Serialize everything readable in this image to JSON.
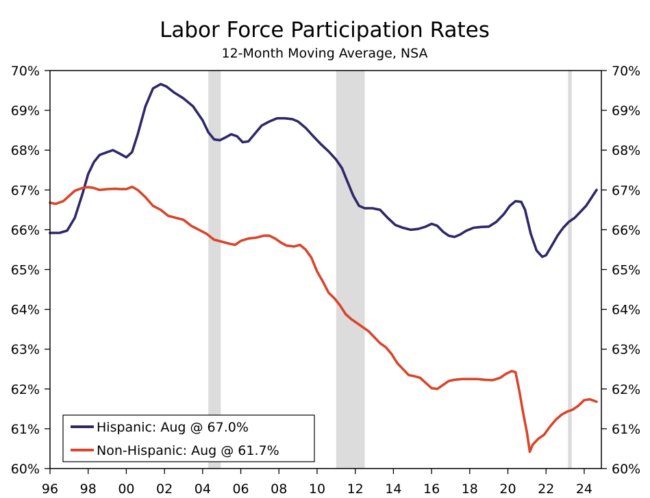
{
  "chart_data": {
    "type": "line",
    "title": "Labor Force Participation Rates",
    "subtitle": "12-Month Moving Average, NSA",
    "x_tick_labels": [
      "96",
      "98",
      "00",
      "02",
      "04",
      "06",
      "08",
      "10",
      "12",
      "14",
      "16",
      "18",
      "20",
      "22",
      "24"
    ],
    "x_tick_years": [
      1996,
      1998,
      2000,
      2002,
      2004,
      2006,
      2008,
      2010,
      2012,
      2014,
      2016,
      2018,
      2020,
      2022,
      2024
    ],
    "xlim": [
      1996,
      2024.9
    ],
    "y_tick_labels": [
      "60%",
      "61%",
      "62%",
      "63%",
      "64%",
      "65%",
      "66%",
      "67%",
      "68%",
      "69%",
      "70%"
    ],
    "y_tick_values": [
      60,
      61,
      62,
      63,
      64,
      65,
      66,
      67,
      68,
      69,
      70
    ],
    "ylim": [
      60,
      70
    ],
    "y_axis_both_sides": true,
    "grid": false,
    "legend_position": "bottom-left",
    "recession_shading": [
      [
        2004.3,
        2004.95
      ],
      [
        2011.0,
        2012.5
      ],
      [
        2023.15,
        2023.35
      ]
    ],
    "series": [
      {
        "name": "Hispanic: Aug @ 67.0%",
        "color": "#2e2768",
        "points": [
          [
            1996.0,
            65.92
          ],
          [
            1996.5,
            65.92
          ],
          [
            1996.9,
            65.98
          ],
          [
            1997.3,
            66.3
          ],
          [
            1997.7,
            66.9
          ],
          [
            1998.0,
            67.4
          ],
          [
            1998.3,
            67.7
          ],
          [
            1998.6,
            67.88
          ],
          [
            1999.0,
            67.95
          ],
          [
            1999.3,
            68.0
          ],
          [
            1999.7,
            67.9
          ],
          [
            2000.0,
            67.82
          ],
          [
            2000.3,
            67.95
          ],
          [
            2000.6,
            68.4
          ],
          [
            2001.0,
            69.1
          ],
          [
            2001.4,
            69.55
          ],
          [
            2001.8,
            69.66
          ],
          [
            2002.1,
            69.6
          ],
          [
            2002.5,
            69.45
          ],
          [
            2003.0,
            69.3
          ],
          [
            2003.5,
            69.1
          ],
          [
            2004.0,
            68.75
          ],
          [
            2004.3,
            68.45
          ],
          [
            2004.6,
            68.27
          ],
          [
            2004.9,
            68.25
          ],
          [
            2005.2,
            68.32
          ],
          [
            2005.5,
            68.4
          ],
          [
            2005.8,
            68.35
          ],
          [
            2006.1,
            68.2
          ],
          [
            2006.4,
            68.22
          ],
          [
            2006.8,
            68.45
          ],
          [
            2007.1,
            68.62
          ],
          [
            2007.5,
            68.72
          ],
          [
            2007.9,
            68.8
          ],
          [
            2008.3,
            68.8
          ],
          [
            2008.7,
            68.78
          ],
          [
            2009.0,
            68.72
          ],
          [
            2009.4,
            68.56
          ],
          [
            2009.8,
            68.35
          ],
          [
            2010.2,
            68.15
          ],
          [
            2010.6,
            67.97
          ],
          [
            2011.0,
            67.76
          ],
          [
            2011.3,
            67.55
          ],
          [
            2011.6,
            67.2
          ],
          [
            2011.9,
            66.85
          ],
          [
            2012.2,
            66.6
          ],
          [
            2012.5,
            66.54
          ],
          [
            2012.9,
            66.54
          ],
          [
            2013.3,
            66.5
          ],
          [
            2013.7,
            66.3
          ],
          [
            2014.1,
            66.12
          ],
          [
            2014.5,
            66.05
          ],
          [
            2014.9,
            66.0
          ],
          [
            2015.3,
            66.02
          ],
          [
            2015.7,
            66.08
          ],
          [
            2016.0,
            66.15
          ],
          [
            2016.3,
            66.1
          ],
          [
            2016.6,
            65.95
          ],
          [
            2016.9,
            65.85
          ],
          [
            2017.2,
            65.82
          ],
          [
            2017.5,
            65.88
          ],
          [
            2017.8,
            65.97
          ],
          [
            2018.2,
            66.05
          ],
          [
            2018.6,
            66.07
          ],
          [
            2019.0,
            66.08
          ],
          [
            2019.4,
            66.2
          ],
          [
            2019.8,
            66.4
          ],
          [
            2020.1,
            66.6
          ],
          [
            2020.4,
            66.72
          ],
          [
            2020.7,
            66.7
          ],
          [
            2020.9,
            66.5
          ],
          [
            2021.2,
            65.9
          ],
          [
            2021.5,
            65.48
          ],
          [
            2021.8,
            65.32
          ],
          [
            2022.0,
            65.36
          ],
          [
            2022.3,
            65.6
          ],
          [
            2022.6,
            65.85
          ],
          [
            2022.9,
            66.05
          ],
          [
            2023.2,
            66.2
          ],
          [
            2023.5,
            66.3
          ],
          [
            2023.8,
            66.45
          ],
          [
            2024.1,
            66.6
          ],
          [
            2024.4,
            66.82
          ],
          [
            2024.65,
            67.0
          ]
        ]
      },
      {
        "name": "Non-Hispanic: Aug @ 61.7%",
        "color": "#d9442a",
        "points": [
          [
            1996.0,
            66.68
          ],
          [
            1996.3,
            66.65
          ],
          [
            1996.7,
            66.72
          ],
          [
            1997.0,
            66.85
          ],
          [
            1997.3,
            66.98
          ],
          [
            1997.7,
            67.05
          ],
          [
            1998.0,
            67.07
          ],
          [
            1998.3,
            67.05
          ],
          [
            1998.6,
            67.0
          ],
          [
            1999.0,
            67.02
          ],
          [
            1999.4,
            67.03
          ],
          [
            1999.7,
            67.02
          ],
          [
            2000.0,
            67.02
          ],
          [
            2000.3,
            67.08
          ],
          [
            2000.6,
            67.0
          ],
          [
            2001.0,
            66.82
          ],
          [
            2001.4,
            66.6
          ],
          [
            2001.8,
            66.5
          ],
          [
            2002.2,
            66.35
          ],
          [
            2002.6,
            66.3
          ],
          [
            2003.0,
            66.25
          ],
          [
            2003.4,
            66.1
          ],
          [
            2003.8,
            66.0
          ],
          [
            2004.2,
            65.9
          ],
          [
            2004.6,
            65.75
          ],
          [
            2005.0,
            65.7
          ],
          [
            2005.4,
            65.65
          ],
          [
            2005.7,
            65.62
          ],
          [
            2006.0,
            65.72
          ],
          [
            2006.4,
            65.78
          ],
          [
            2006.8,
            65.8
          ],
          [
            2007.2,
            65.85
          ],
          [
            2007.5,
            65.85
          ],
          [
            2007.8,
            65.78
          ],
          [
            2008.1,
            65.68
          ],
          [
            2008.4,
            65.6
          ],
          [
            2008.8,
            65.58
          ],
          [
            2009.1,
            65.62
          ],
          [
            2009.4,
            65.5
          ],
          [
            2009.7,
            65.3
          ],
          [
            2010.0,
            64.95
          ],
          [
            2010.3,
            64.7
          ],
          [
            2010.6,
            64.42
          ],
          [
            2010.9,
            64.28
          ],
          [
            2011.2,
            64.1
          ],
          [
            2011.5,
            63.88
          ],
          [
            2011.8,
            63.75
          ],
          [
            2012.1,
            63.65
          ],
          [
            2012.4,
            63.55
          ],
          [
            2012.7,
            63.45
          ],
          [
            2013.0,
            63.3
          ],
          [
            2013.3,
            63.15
          ],
          [
            2013.6,
            63.05
          ],
          [
            2013.9,
            62.88
          ],
          [
            2014.2,
            62.65
          ],
          [
            2014.5,
            62.5
          ],
          [
            2014.8,
            62.35
          ],
          [
            2015.1,
            62.32
          ],
          [
            2015.4,
            62.28
          ],
          [
            2015.7,
            62.15
          ],
          [
            2016.0,
            62.02
          ],
          [
            2016.3,
            62.0
          ],
          [
            2016.6,
            62.1
          ],
          [
            2016.9,
            62.2
          ],
          [
            2017.2,
            62.23
          ],
          [
            2017.6,
            62.25
          ],
          [
            2018.0,
            62.25
          ],
          [
            2018.4,
            62.25
          ],
          [
            2018.8,
            62.23
          ],
          [
            2019.2,
            62.22
          ],
          [
            2019.6,
            62.28
          ],
          [
            2019.9,
            62.38
          ],
          [
            2020.2,
            62.45
          ],
          [
            2020.4,
            62.42
          ],
          [
            2020.6,
            61.95
          ],
          [
            2020.8,
            61.4
          ],
          [
            2021.0,
            60.9
          ],
          [
            2021.15,
            60.42
          ],
          [
            2021.3,
            60.6
          ],
          [
            2021.6,
            60.75
          ],
          [
            2021.9,
            60.85
          ],
          [
            2022.2,
            61.05
          ],
          [
            2022.5,
            61.22
          ],
          [
            2022.8,
            61.35
          ],
          [
            2023.1,
            61.43
          ],
          [
            2023.4,
            61.48
          ],
          [
            2023.7,
            61.58
          ],
          [
            2024.0,
            61.72
          ],
          [
            2024.3,
            61.74
          ],
          [
            2024.65,
            61.68
          ]
        ]
      }
    ]
  }
}
